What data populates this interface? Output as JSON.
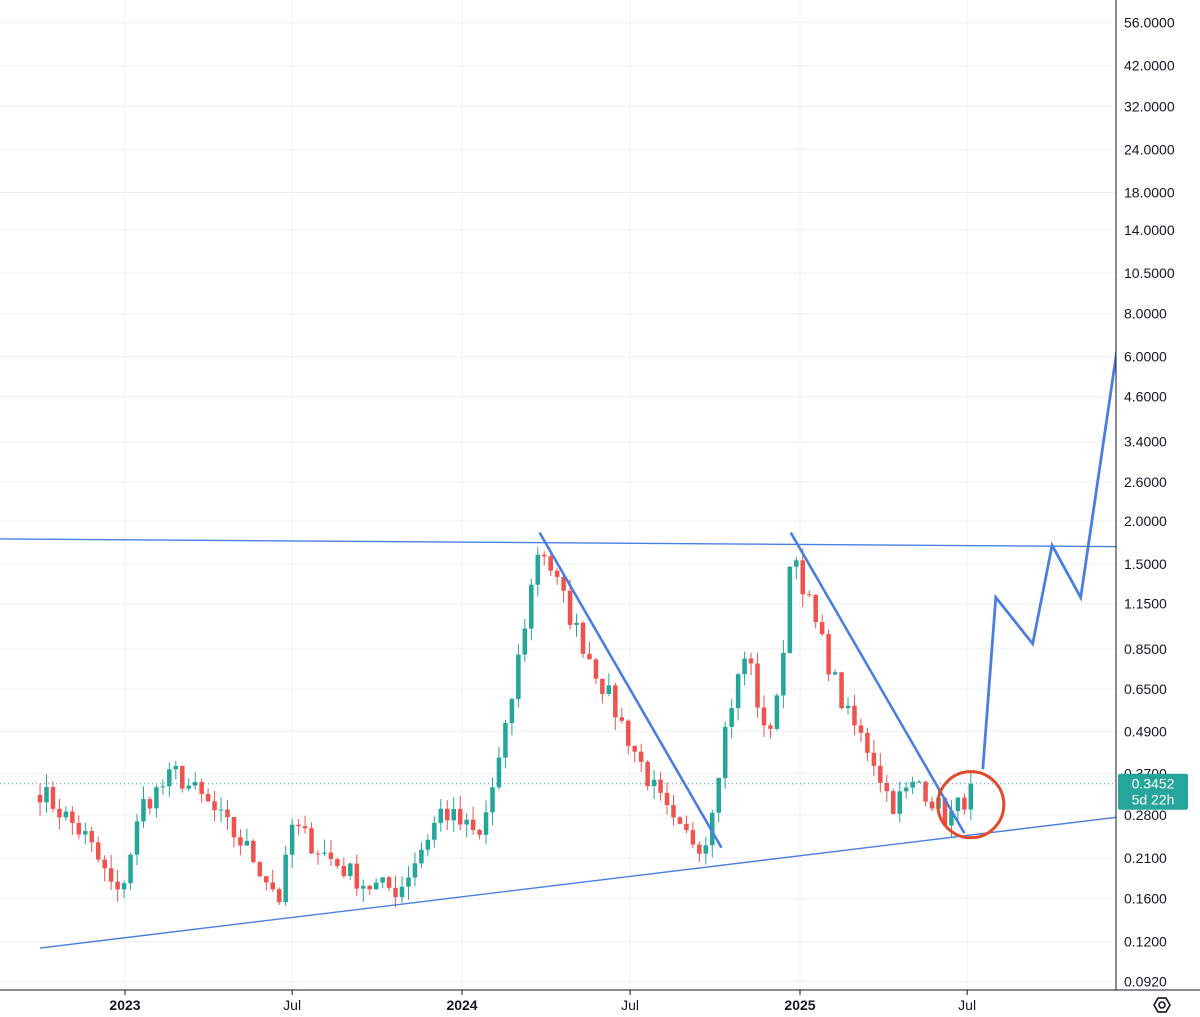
{
  "chart_data": {
    "type": "candlestick",
    "y_scale": "log",
    "grid": true,
    "ylim": [
      0.085,
      66
    ],
    "x_tick_labels": [
      {
        "label": "2023",
        "date": "2023-01-01",
        "bold": true
      },
      {
        "label": "Jul",
        "date": "2023-07-01",
        "bold": false
      },
      {
        "label": "2024",
        "date": "2024-01-01",
        "bold": true
      },
      {
        "label": "Jul",
        "date": "2024-07-01",
        "bold": false
      },
      {
        "label": "2025",
        "date": "2025-01-01",
        "bold": true
      },
      {
        "label": "Jul",
        "date": "2025-07-01",
        "bold": false
      }
    ],
    "y_tick_labels": [
      "56.0000",
      "42.0000",
      "32.0000",
      "24.0000",
      "18.0000",
      "14.0000",
      "10.5000",
      "8.0000",
      "6.0000",
      "4.6000",
      "3.4000",
      "2.6000",
      "2.0000",
      "1.5000",
      "1.1500",
      "0.8500",
      "0.6500",
      "0.4900",
      "0.3700",
      "0.2800",
      "0.2100",
      "0.1600",
      "0.1200",
      "0.0920"
    ],
    "last_price": {
      "value": "0.3452",
      "countdown": "5d 22h"
    },
    "colors": {
      "up": "#26a69a",
      "down": "#ef5350",
      "drawing": "#4a7fe0",
      "circle": "#e5492c",
      "price_label": "#26a69a"
    },
    "candle_anchors": [
      {
        "date": "2022-10-01",
        "price": 0.33
      },
      {
        "date": "2022-11-20",
        "price": 0.24
      },
      {
        "date": "2022-12-25",
        "price": 0.16
      },
      {
        "date": "2023-01-20",
        "price": 0.3
      },
      {
        "date": "2023-02-25",
        "price": 0.37
      },
      {
        "date": "2023-04-01",
        "price": 0.3
      },
      {
        "date": "2023-05-15",
        "price": 0.22
      },
      {
        "date": "2023-06-18",
        "price": 0.16
      },
      {
        "date": "2023-07-01",
        "price": 0.26
      },
      {
        "date": "2023-08-10",
        "price": 0.21
      },
      {
        "date": "2023-09-20",
        "price": 0.175
      },
      {
        "date": "2023-10-25",
        "price": 0.17
      },
      {
        "date": "2023-12-10",
        "price": 0.29
      },
      {
        "date": "2024-01-20",
        "price": 0.24
      },
      {
        "date": "2024-02-15",
        "price": 0.45
      },
      {
        "date": "2024-03-10",
        "price": 1.05
      },
      {
        "date": "2024-03-25",
        "price": 1.75
      },
      {
        "date": "2024-05-01",
        "price": 1.0
      },
      {
        "date": "2024-06-10",
        "price": 0.6
      },
      {
        "date": "2024-07-20",
        "price": 0.36
      },
      {
        "date": "2024-08-20",
        "price": 0.25
      },
      {
        "date": "2024-09-20",
        "price": 0.23
      },
      {
        "date": "2024-10-15",
        "price": 0.55
      },
      {
        "date": "2024-11-05",
        "price": 0.85
      },
      {
        "date": "2024-11-25",
        "price": 0.45
      },
      {
        "date": "2024-12-15",
        "price": 0.8
      },
      {
        "date": "2024-12-22",
        "price": 1.75
      },
      {
        "date": "2025-01-15",
        "price": 1.05
      },
      {
        "date": "2025-02-20",
        "price": 0.55
      },
      {
        "date": "2025-03-20",
        "price": 0.42
      },
      {
        "date": "2025-04-10",
        "price": 0.3
      },
      {
        "date": "2025-05-10",
        "price": 0.35
      },
      {
        "date": "2025-06-10",
        "price": 0.27
      },
      {
        "date": "2025-07-10",
        "price": 0.3452
      }
    ],
    "drawings": {
      "resistance_line": [
        {
          "date": "2022-06-01",
          "price": 1.78
        },
        {
          "date": "2026-02-15",
          "price": 1.68
        }
      ],
      "support_line": [
        {
          "date": "2022-10-01",
          "price": 0.115
        },
        {
          "date": "2026-02-15",
          "price": 0.29
        }
      ],
      "trend_down_1": [
        {
          "date": "2024-03-25",
          "price": 1.85
        },
        {
          "date": "2024-10-08",
          "price": 0.225
        }
      ],
      "trend_down_2": [
        {
          "date": "2024-12-22",
          "price": 1.85
        },
        {
          "date": "2025-06-28",
          "price": 0.248
        }
      ],
      "projection": [
        {
          "date": "2025-07-18",
          "price": 0.38
        },
        {
          "date": "2025-08-01",
          "price": 1.2
        },
        {
          "date": "2025-09-10",
          "price": 0.88
        },
        {
          "date": "2025-10-01",
          "price": 1.7
        },
        {
          "date": "2025-11-01",
          "price": 1.2
        },
        {
          "date": "2026-02-01",
          "price": 58
        },
        {
          "date": "2026-02-15",
          "price": 52
        }
      ],
      "circle_center": {
        "date": "2025-07-05",
        "price": 0.3
      }
    }
  }
}
